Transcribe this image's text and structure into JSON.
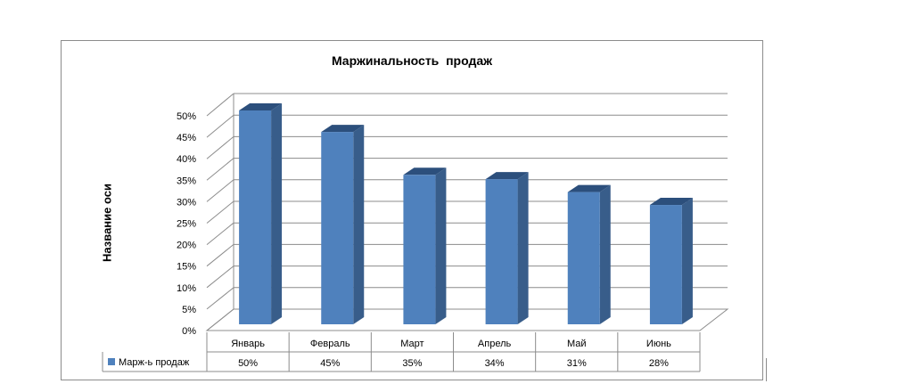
{
  "chart_data": {
    "type": "bar",
    "title": "Маржинальность  продаж",
    "ylabel": "Название оси",
    "xlabel": "",
    "categories": [
      "Январь",
      "Февраль",
      "Март",
      "Апрель",
      "Май",
      "Июнь"
    ],
    "series": [
      {
        "name": "Марж-ь продаж",
        "values": [
          50,
          45,
          35,
          34,
          31,
          28
        ],
        "color": "#4f81bd"
      }
    ],
    "data_labels": [
      "50%",
      "45%",
      "35%",
      "34%",
      "31%",
      "28%"
    ],
    "yticks": [
      "0%",
      "5%",
      "10%",
      "15%",
      "20%",
      "25%",
      "30%",
      "35%",
      "40%",
      "45%",
      "50%"
    ],
    "ylim": [
      0,
      50
    ],
    "grid": true,
    "legend": "data-table-left",
    "style": "3d-column",
    "colors": {
      "bar_front": "#4f81bd",
      "bar_side": "#385d8a",
      "bar_top": "#2c4f7c",
      "grid": "#8c8c8c"
    }
  }
}
